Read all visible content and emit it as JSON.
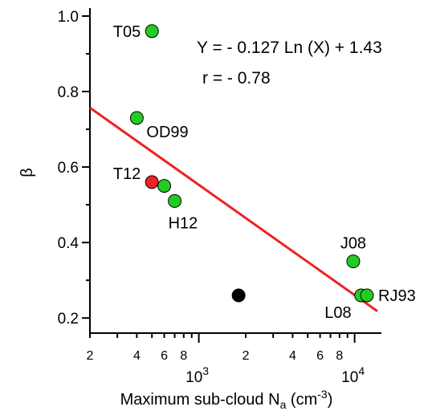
{
  "chart_data": {
    "type": "scatter",
    "x_scale": "log",
    "xlim": [
      200,
      14000
    ],
    "ylim": [
      0.16,
      1.0
    ],
    "xlabel": "Maximum sub-cloud N",
    "xlabel_sub": "a",
    "xlabel_unit_open": " (cm",
    "xlabel_unit_sup": "-3",
    "xlabel_unit_close": ")",
    "ylabel": "β",
    "y_ticks": [
      0.2,
      0.4,
      0.6,
      0.8,
      1.0
    ],
    "y_tick_labels": [
      "0.2",
      "0.4",
      "0.6",
      "0.8",
      "1.0"
    ],
    "x_major_ticks": [
      {
        "value": 1000,
        "base": "10",
        "exp": "3"
      },
      {
        "value": 10000,
        "base": "10",
        "exp": "4"
      }
    ],
    "x_minor_labeled": [
      {
        "value": 200,
        "label": "2"
      },
      {
        "value": 400,
        "label": "4"
      },
      {
        "value": 600,
        "label": "6"
      },
      {
        "value": 800,
        "label": "8"
      },
      {
        "value": 2000,
        "label": "2"
      },
      {
        "value": 4000,
        "label": "4"
      },
      {
        "value": 6000,
        "label": "6"
      },
      {
        "value": 8000,
        "label": "8"
      }
    ],
    "points": [
      {
        "label": "T05",
        "x": 500,
        "y": 0.96,
        "color": "#22cc22"
      },
      {
        "label": "OD99",
        "x": 400,
        "y": 0.73,
        "color": "#22cc22"
      },
      {
        "label": "T12",
        "x": 500,
        "y": 0.56,
        "color": "#ee2222"
      },
      {
        "label": "",
        "x": 600,
        "y": 0.55,
        "color": "#22cc22"
      },
      {
        "label": "H12",
        "x": 700,
        "y": 0.51,
        "color": "#22cc22"
      },
      {
        "label": "J08",
        "x": 9800,
        "y": 0.35,
        "color": "#22cc22"
      },
      {
        "label": "L08",
        "x": 11000,
        "y": 0.26,
        "color": "#22cc22"
      },
      {
        "label": "RJ93",
        "x": 12000,
        "y": 0.26,
        "color": "#22cc22"
      },
      {
        "label": "",
        "x": 1800,
        "y": 0.26,
        "color": "#000000"
      }
    ],
    "fit_line": {
      "x": [
        200,
        14000
      ],
      "y": [
        0.757,
        0.218
      ],
      "color": "#ee2222"
    },
    "equation": "Y = - 0.127 Ln (X) + 1.43",
    "correlation": "r = - 0.78",
    "grid": false,
    "legend": "none"
  }
}
